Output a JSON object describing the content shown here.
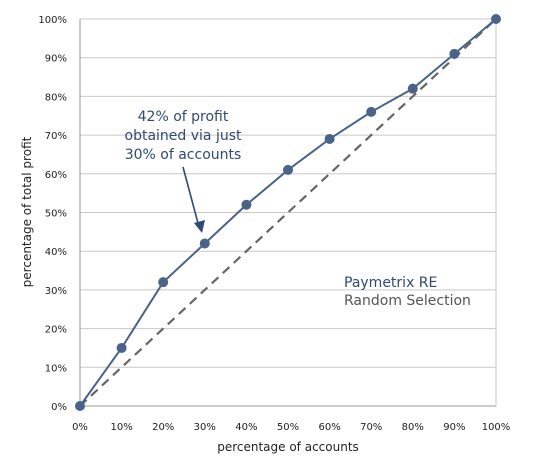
{
  "chart_data": {
    "type": "line",
    "xlabel": "percentage of accounts",
    "ylabel": "percentage of total profit",
    "xlim": [
      0,
      100
    ],
    "ylim": [
      0,
      100
    ],
    "x_tick_labels": [
      "0%",
      "10%",
      "20%",
      "30%",
      "40%",
      "50%",
      "60%",
      "70%",
      "80%",
      "90%",
      "100%"
    ],
    "y_tick_labels": [
      "0%",
      "10%",
      "20%",
      "30%",
      "40%",
      "50%",
      "60%",
      "70%",
      "80%",
      "90%",
      "100%"
    ],
    "grid": "horizontal",
    "legend": "inside-right",
    "series": [
      {
        "name": "Paymetrix RE",
        "x": [
          0,
          10,
          20,
          30,
          40,
          50,
          60,
          70,
          80,
          90,
          100
        ],
        "values": [
          0,
          15,
          32,
          42,
          52,
          61,
          69,
          76,
          82,
          91,
          100
        ],
        "color": "#4a6389",
        "style": "solid-with-markers"
      },
      {
        "name": "Random Selection",
        "x": [
          0,
          100
        ],
        "values": [
          0,
          100
        ],
        "color": "#666666",
        "style": "dashed"
      }
    ],
    "annotation": {
      "lines": [
        "42% of profit",
        "obtained via just",
        "30% of accounts"
      ],
      "points_to": {
        "x": 30,
        "y": 42
      },
      "color": "#2f4a74"
    }
  }
}
